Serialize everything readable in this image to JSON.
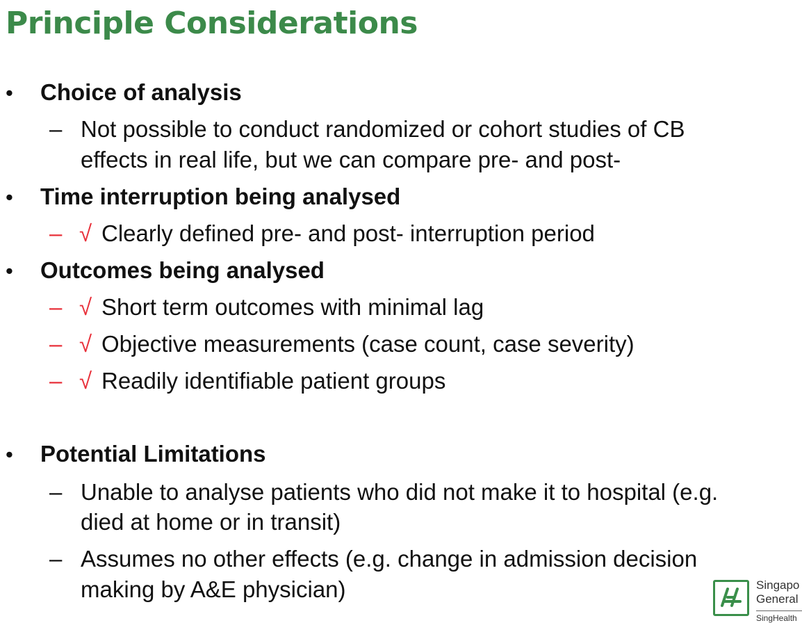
{
  "title": "Principle Considerations",
  "bullet_symbol": "•",
  "dash_symbol": "–",
  "check_symbol": "√",
  "sections": [
    {
      "heading": "Choice of analysis",
      "items": [
        {
          "checked": false,
          "lines": [
            "Not possible to conduct randomized or cohort studies of CB",
            "effects in real life, but we can compare pre- and post-"
          ]
        }
      ]
    },
    {
      "heading": "Time interruption being analysed",
      "items": [
        {
          "checked": true,
          "lines": [
            "Clearly defined pre- and post- interruption period"
          ]
        }
      ]
    },
    {
      "heading": "Outcomes being analysed",
      "items": [
        {
          "checked": true,
          "lines": [
            "Short term outcomes with minimal lag"
          ]
        },
        {
          "checked": true,
          "lines": [
            "Objective measurements (case count, case severity)"
          ]
        },
        {
          "checked": true,
          "lines": [
            "Readily identifiable patient groups"
          ]
        }
      ]
    },
    {
      "heading": "Potential Limitations",
      "items": [
        {
          "checked": false,
          "lines": [
            "Unable to analyse patients who did not make it to hospital (e.g.",
            "died at home or in transit)"
          ]
        },
        {
          "checked": false,
          "lines": [
            "Assumes no other effects (e.g. change in admission decision",
            "making by A&E physician)"
          ]
        }
      ]
    }
  ],
  "logo": {
    "line1": "Singapo",
    "line2": "General",
    "line3": "SingHealth",
    "color": "#3a8f4a"
  },
  "colors": {
    "title": "#3c8a4a",
    "check": "#e8303a",
    "text": "#111111"
  }
}
